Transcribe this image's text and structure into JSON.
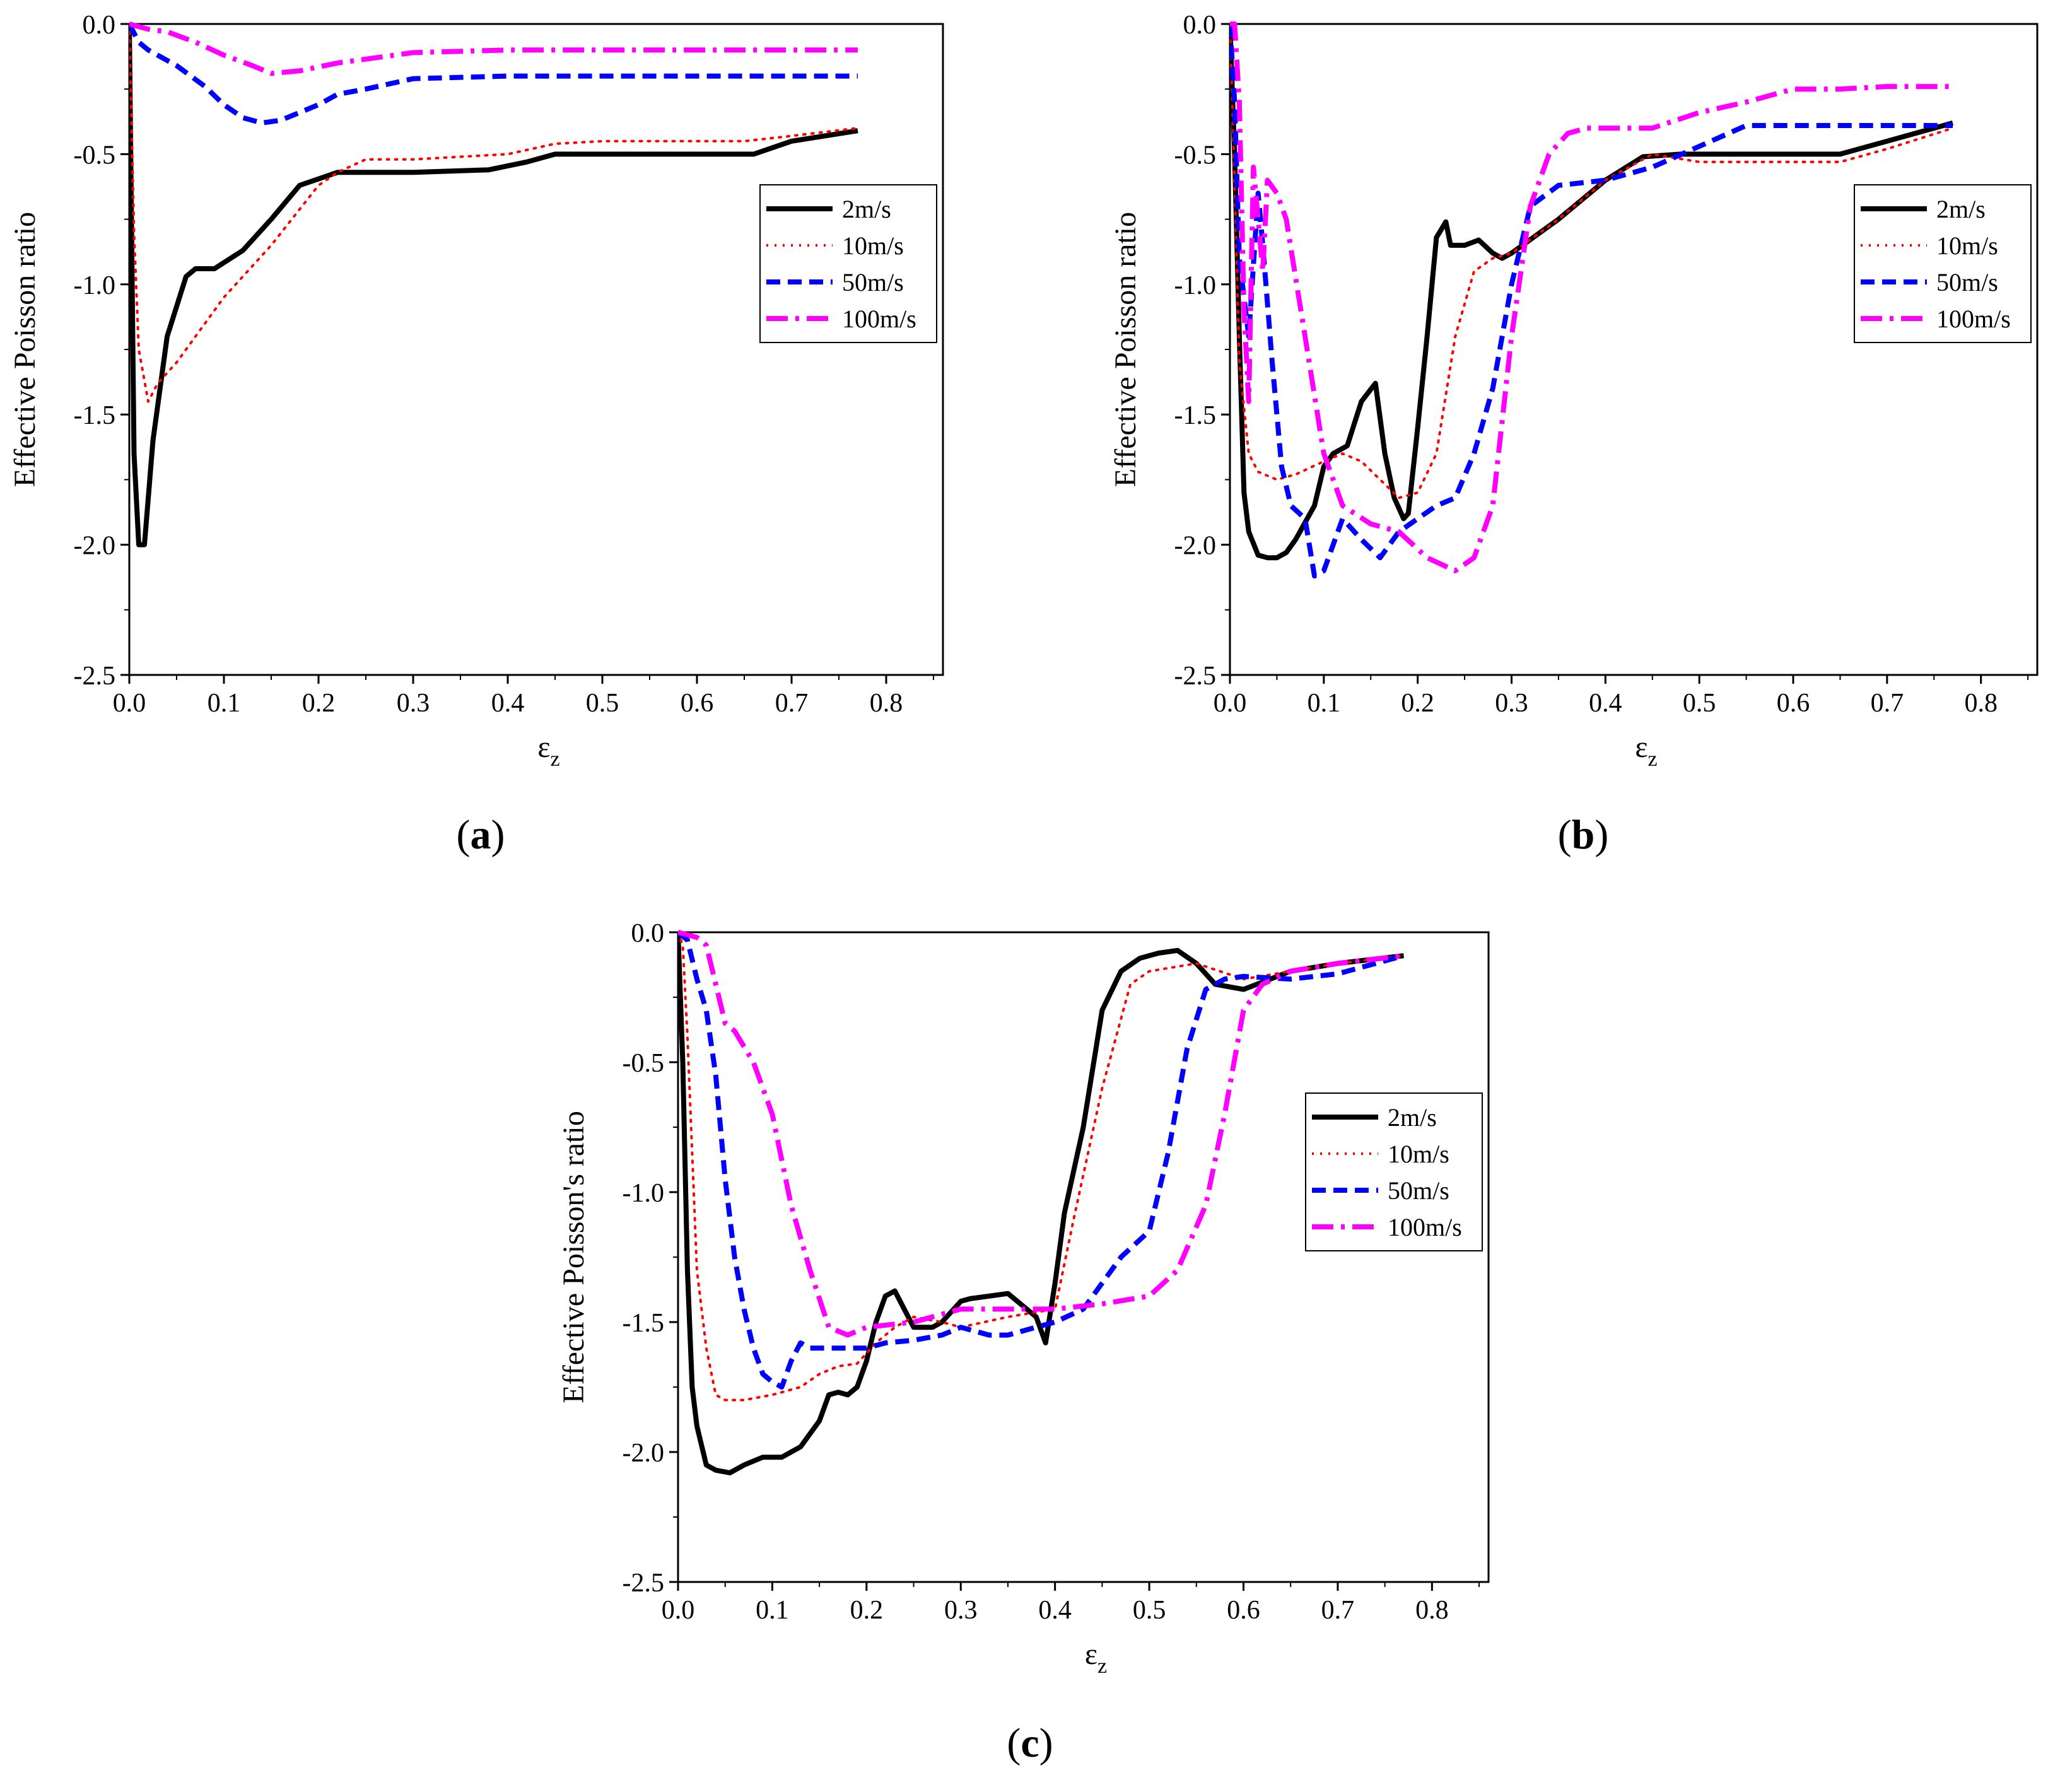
{
  "figure": {
    "panels": [
      "a",
      "b",
      "c"
    ]
  },
  "chart_data": [
    {
      "id": "a",
      "type": "line",
      "panel_label": "(a)",
      "xlabel": "ε_z",
      "ylabel": "Effective Poisson ratio",
      "xlim": [
        0,
        0.86
      ],
      "ylim": [
        -2.5,
        0
      ],
      "xticks": [
        0.0,
        0.1,
        0.2,
        0.3,
        0.4,
        0.5,
        0.6,
        0.7,
        0.8
      ],
      "xtick_labels": [
        "0.0",
        "0.1",
        "0.2",
        "0.3",
        "0.4",
        "0.5",
        "0.6",
        "0.7",
        "0.8"
      ],
      "yticks": [
        0.0,
        -0.5,
        -1.0,
        -1.5,
        -2.0,
        -2.5
      ],
      "ytick_labels": [
        "0.0",
        "-0.5",
        "-1.0",
        "-1.5",
        "-2.0",
        "-2.5"
      ],
      "legend_position": "right-middle-upper",
      "series": [
        {
          "name": "2m/s",
          "color": "#000000",
          "style": "solid",
          "x": [
            0,
            0.005,
            0.01,
            0.016,
            0.025,
            0.04,
            0.06,
            0.07,
            0.09,
            0.12,
            0.15,
            0.18,
            0.22,
            0.3,
            0.38,
            0.42,
            0.45,
            0.5,
            0.6,
            0.66,
            0.7,
            0.77
          ],
          "y": [
            0,
            -1.65,
            -2.0,
            -2.0,
            -1.6,
            -1.2,
            -0.97,
            -0.94,
            -0.94,
            -0.87,
            -0.75,
            -0.62,
            -0.57,
            -0.57,
            -0.56,
            -0.53,
            -0.5,
            -0.5,
            -0.5,
            -0.5,
            -0.45,
            -0.41
          ]
        },
        {
          "name": "10m/s",
          "color": "#ff0000",
          "style": "dotted",
          "x": [
            0,
            0.005,
            0.01,
            0.02,
            0.03,
            0.05,
            0.1,
            0.15,
            0.2,
            0.22,
            0.25,
            0.3,
            0.35,
            0.4,
            0.45,
            0.5,
            0.6,
            0.65,
            0.7,
            0.77
          ],
          "y": [
            0,
            -0.8,
            -1.25,
            -1.45,
            -1.38,
            -1.3,
            -1.05,
            -0.85,
            -0.62,
            -0.57,
            -0.52,
            -0.52,
            -0.51,
            -0.5,
            -0.46,
            -0.45,
            -0.45,
            -0.45,
            -0.43,
            -0.4
          ]
        },
        {
          "name": "50m/s",
          "color": "#0000ff",
          "style": "dashed",
          "x": [
            0,
            0.01,
            0.02,
            0.05,
            0.08,
            0.1,
            0.12,
            0.14,
            0.16,
            0.18,
            0.2,
            0.22,
            0.25,
            0.3,
            0.4,
            0.5,
            0.6,
            0.7,
            0.77
          ],
          "y": [
            0,
            -0.07,
            -0.1,
            -0.16,
            -0.24,
            -0.31,
            -0.36,
            -0.38,
            -0.37,
            -0.34,
            -0.31,
            -0.27,
            -0.25,
            -0.21,
            -0.2,
            -0.2,
            -0.2,
            -0.2,
            -0.2
          ]
        },
        {
          "name": "100m/s",
          "color": "#ff00ff",
          "style": "dashdot",
          "x": [
            0,
            0.02,
            0.04,
            0.07,
            0.1,
            0.13,
            0.15,
            0.18,
            0.22,
            0.3,
            0.4,
            0.5,
            0.6,
            0.7,
            0.77
          ],
          "y": [
            0,
            -0.02,
            -0.03,
            -0.07,
            -0.12,
            -0.16,
            -0.19,
            -0.18,
            -0.15,
            -0.11,
            -0.1,
            -0.1,
            -0.1,
            -0.1,
            -0.1
          ]
        }
      ]
    },
    {
      "id": "b",
      "type": "line",
      "panel_label": "(b)",
      "xlabel": "ε_z",
      "ylabel": "Effective Poisson ratio",
      "xlim": [
        0,
        0.86
      ],
      "ylim": [
        -2.5,
        0
      ],
      "xticks": [
        0.0,
        0.1,
        0.2,
        0.3,
        0.4,
        0.5,
        0.6,
        0.7,
        0.8
      ],
      "xtick_labels": [
        "0.0",
        "0.1",
        "0.2",
        "0.3",
        "0.4",
        "0.5",
        "0.6",
        "0.7",
        "0.8"
      ],
      "yticks": [
        0.0,
        -0.5,
        -1.0,
        -1.5,
        -2.0,
        -2.5
      ],
      "ytick_labels": [
        "0.0",
        "-0.5",
        "-1.0",
        "-1.5",
        "-2.0",
        "-2.5"
      ],
      "legend_position": "right-middle-upper",
      "series": [
        {
          "name": "2m/s",
          "color": "#000000",
          "style": "solid",
          "x": [
            0,
            0.005,
            0.01,
            0.015,
            0.02,
            0.03,
            0.04,
            0.05,
            0.06,
            0.07,
            0.09,
            0.1,
            0.11,
            0.125,
            0.14,
            0.155,
            0.165,
            0.175,
            0.185,
            0.19,
            0.2,
            0.21,
            0.22,
            0.23,
            0.235,
            0.25,
            0.265,
            0.28,
            0.29,
            0.3,
            0.35,
            0.4,
            0.44,
            0.48,
            0.55,
            0.65,
            0.7,
            0.77
          ],
          "y": [
            0,
            -0.5,
            -1.2,
            -1.8,
            -1.95,
            -2.04,
            -2.05,
            -2.05,
            -2.03,
            -1.98,
            -1.85,
            -1.7,
            -1.65,
            -1.62,
            -1.45,
            -1.38,
            -1.65,
            -1.82,
            -1.9,
            -1.88,
            -1.55,
            -1.2,
            -0.82,
            -0.76,
            -0.85,
            -0.85,
            -0.83,
            -0.88,
            -0.9,
            -0.88,
            -0.75,
            -0.6,
            -0.51,
            -0.5,
            -0.5,
            -0.5,
            -0.45,
            -0.38
          ]
        },
        {
          "name": "10m/s",
          "color": "#ff0000",
          "style": "dotted",
          "x": [
            0,
            0.005,
            0.01,
            0.02,
            0.03,
            0.05,
            0.07,
            0.1,
            0.12,
            0.14,
            0.16,
            0.18,
            0.2,
            0.22,
            0.24,
            0.26,
            0.28,
            0.3,
            0.35,
            0.4,
            0.45,
            0.5,
            0.55,
            0.6,
            0.65,
            0.7,
            0.77
          ],
          "y": [
            0,
            -0.6,
            -1.3,
            -1.65,
            -1.72,
            -1.75,
            -1.73,
            -1.68,
            -1.65,
            -1.68,
            -1.75,
            -1.82,
            -1.8,
            -1.65,
            -1.2,
            -0.95,
            -0.9,
            -0.88,
            -0.75,
            -0.6,
            -0.5,
            -0.53,
            -0.53,
            -0.53,
            -0.53,
            -0.48,
            -0.4
          ]
        },
        {
          "name": "50m/s",
          "color": "#0000ff",
          "style": "dashed",
          "x": [
            0,
            0.005,
            0.01,
            0.02,
            0.03,
            0.035,
            0.045,
            0.055,
            0.065,
            0.08,
            0.09,
            0.1,
            0.12,
            0.14,
            0.16,
            0.18,
            0.2,
            0.22,
            0.24,
            0.26,
            0.28,
            0.3,
            0.32,
            0.35,
            0.4,
            0.45,
            0.5,
            0.55,
            0.6,
            0.7,
            0.77
          ],
          "y": [
            0,
            -0.3,
            -0.9,
            -1.2,
            -0.65,
            -0.85,
            -1.3,
            -1.7,
            -1.85,
            -1.9,
            -2.12,
            -2.1,
            -1.9,
            -1.98,
            -2.05,
            -1.95,
            -1.9,
            -1.85,
            -1.82,
            -1.65,
            -1.4,
            -1.0,
            -0.7,
            -0.62,
            -0.6,
            -0.55,
            -0.47,
            -0.39,
            -0.39,
            -0.39,
            -0.39
          ]
        },
        {
          "name": "100m/s",
          "color": "#ff00ff",
          "style": "dashdot",
          "x": [
            0,
            0.005,
            0.01,
            0.015,
            0.02,
            0.025,
            0.03,
            0.035,
            0.04,
            0.05,
            0.06,
            0.08,
            0.1,
            0.12,
            0.15,
            0.18,
            0.21,
            0.24,
            0.26,
            0.28,
            0.3,
            0.32,
            0.34,
            0.36,
            0.38,
            0.45,
            0.5,
            0.55,
            0.6,
            0.65,
            0.7,
            0.77
          ],
          "y": [
            0,
            0,
            -0.3,
            -1.1,
            -1.45,
            -0.55,
            -0.75,
            -0.95,
            -0.6,
            -0.65,
            -0.75,
            -1.2,
            -1.65,
            -1.85,
            -1.92,
            -1.95,
            -2.05,
            -2.1,
            -2.05,
            -1.85,
            -1.2,
            -0.7,
            -0.5,
            -0.42,
            -0.4,
            -0.4,
            -0.34,
            -0.3,
            -0.25,
            -0.25,
            -0.24,
            -0.24
          ]
        }
      ]
    },
    {
      "id": "c",
      "type": "line",
      "panel_label": "(c)",
      "xlabel": "ε_z",
      "ylabel": "Effective Poisson's ratio",
      "xlim": [
        0,
        0.86
      ],
      "ylim": [
        -2.5,
        0
      ],
      "xticks": [
        0.0,
        0.1,
        0.2,
        0.3,
        0.4,
        0.5,
        0.6,
        0.7,
        0.8
      ],
      "xtick_labels": [
        "0.0",
        "0.1",
        "0.2",
        "0.3",
        "0.4",
        "0.5",
        "0.6",
        "0.7",
        "0.8"
      ],
      "yticks": [
        0.0,
        -0.5,
        -1.0,
        -1.5,
        -2.0,
        -2.5
      ],
      "ytick_labels": [
        "0.0",
        "-0.5",
        "-1.0",
        "-1.5",
        "-2.0",
        "-2.5"
      ],
      "legend_position": "right-middle-upper",
      "series": [
        {
          "name": "2m/s",
          "color": "#000000",
          "style": "solid",
          "x": [
            0,
            0.005,
            0.01,
            0.015,
            0.02,
            0.03,
            0.04,
            0.055,
            0.07,
            0.09,
            0.11,
            0.13,
            0.15,
            0.16,
            0.17,
            0.18,
            0.19,
            0.2,
            0.21,
            0.22,
            0.23,
            0.25,
            0.27,
            0.28,
            0.3,
            0.31,
            0.33,
            0.35,
            0.38,
            0.39,
            0.4,
            0.41,
            0.43,
            0.45,
            0.47,
            0.49,
            0.51,
            0.53,
            0.55,
            0.57,
            0.6,
            0.65,
            0.7,
            0.77
          ],
          "y": [
            0,
            -0.5,
            -1.3,
            -1.75,
            -1.9,
            -2.05,
            -2.07,
            -2.08,
            -2.05,
            -2.02,
            -2.02,
            -1.98,
            -1.88,
            -1.78,
            -1.77,
            -1.78,
            -1.75,
            -1.65,
            -1.5,
            -1.4,
            -1.38,
            -1.52,
            -1.52,
            -1.5,
            -1.42,
            -1.41,
            -1.4,
            -1.39,
            -1.48,
            -1.58,
            -1.35,
            -1.08,
            -0.75,
            -0.3,
            -0.15,
            -0.1,
            -0.08,
            -0.07,
            -0.12,
            -0.2,
            -0.22,
            -0.15,
            -0.12,
            -0.09
          ]
        },
        {
          "name": "10m/s",
          "color": "#ff0000",
          "style": "dotted",
          "x": [
            0,
            0.005,
            0.01,
            0.02,
            0.03,
            0.04,
            0.05,
            0.07,
            0.1,
            0.13,
            0.15,
            0.17,
            0.19,
            0.21,
            0.23,
            0.25,
            0.28,
            0.3,
            0.35,
            0.4,
            0.42,
            0.45,
            0.48,
            0.5,
            0.55,
            0.6,
            0.65,
            0.7,
            0.77
          ],
          "y": [
            0,
            -0.05,
            -0.4,
            -1.3,
            -1.6,
            -1.78,
            -1.8,
            -1.8,
            -1.78,
            -1.75,
            -1.7,
            -1.67,
            -1.66,
            -1.58,
            -1.52,
            -1.48,
            -1.5,
            -1.52,
            -1.48,
            -1.45,
            -1.1,
            -0.6,
            -0.2,
            -0.15,
            -0.12,
            -0.18,
            -0.15,
            -0.12,
            -0.09
          ]
        },
        {
          "name": "50m/s",
          "color": "#0000ff",
          "style": "dashed",
          "x": [
            0,
            0.01,
            0.02,
            0.03,
            0.04,
            0.05,
            0.06,
            0.07,
            0.08,
            0.09,
            0.1,
            0.11,
            0.12,
            0.13,
            0.14,
            0.16,
            0.18,
            0.2,
            0.22,
            0.25,
            0.28,
            0.3,
            0.33,
            0.35,
            0.38,
            0.4,
            0.43,
            0.45,
            0.47,
            0.5,
            0.52,
            0.54,
            0.56,
            0.58,
            0.6,
            0.65,
            0.7,
            0.77
          ],
          "y": [
            0,
            -0.03,
            -0.18,
            -0.3,
            -0.55,
            -0.95,
            -1.25,
            -1.45,
            -1.6,
            -1.7,
            -1.73,
            -1.75,
            -1.65,
            -1.58,
            -1.6,
            -1.6,
            -1.6,
            -1.6,
            -1.58,
            -1.57,
            -1.55,
            -1.52,
            -1.55,
            -1.55,
            -1.52,
            -1.5,
            -1.45,
            -1.35,
            -1.25,
            -1.15,
            -0.85,
            -0.45,
            -0.22,
            -0.18,
            -0.17,
            -0.18,
            -0.16,
            -0.09
          ]
        },
        {
          "name": "100m/s",
          "color": "#ff00ff",
          "style": "dashdot",
          "x": [
            0,
            0.02,
            0.03,
            0.04,
            0.05,
            0.06,
            0.08,
            0.1,
            0.12,
            0.14,
            0.16,
            0.18,
            0.2,
            0.25,
            0.3,
            0.35,
            0.4,
            0.45,
            0.5,
            0.53,
            0.56,
            0.58,
            0.6,
            0.62,
            0.65,
            0.7,
            0.77
          ],
          "y": [
            0,
            -0.02,
            -0.05,
            -0.2,
            -0.35,
            -0.38,
            -0.5,
            -0.7,
            -1.05,
            -1.3,
            -1.52,
            -1.55,
            -1.52,
            -1.5,
            -1.45,
            -1.45,
            -1.45,
            -1.43,
            -1.4,
            -1.3,
            -1.05,
            -0.7,
            -0.3,
            -0.2,
            -0.15,
            -0.12,
            -0.09
          ]
        }
      ]
    }
  ]
}
